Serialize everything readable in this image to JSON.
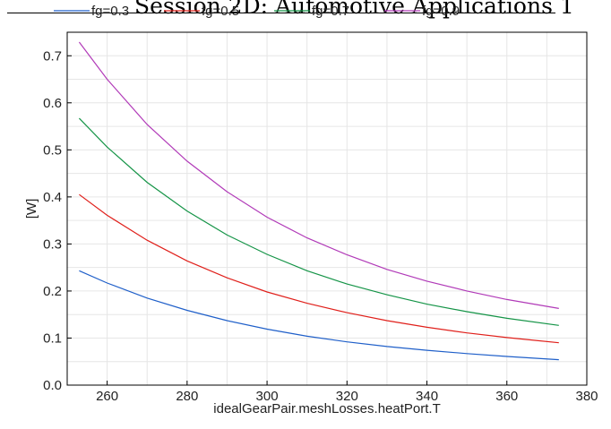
{
  "header": {
    "title": "Session 2D: Automotive Applications 1"
  },
  "chart_data": {
    "type": "line",
    "xlabel": "idealGearPair.meshLosses.heatPort.T",
    "ylabel": "[W]",
    "xlim": [
      250,
      380
    ],
    "ylim": [
      0,
      0.75
    ],
    "x_ticks": [
      260,
      280,
      300,
      320,
      340,
      360,
      380
    ],
    "y_ticks": [
      0.0,
      0.1,
      0.2,
      0.3,
      0.4,
      0.5,
      0.6,
      0.7
    ],
    "x_tick_labels": [
      "260",
      "280",
      "300",
      "320",
      "340",
      "360",
      "380"
    ],
    "y_tick_labels": [
      "0.0",
      "0.1",
      "0.2",
      "0.3",
      "0.4",
      "0.5",
      "0.6",
      "0.7"
    ],
    "grid": true,
    "legend_position": "top",
    "x": [
      253,
      260,
      270,
      280,
      290,
      300,
      310,
      320,
      330,
      340,
      350,
      360,
      373
    ],
    "series": [
      {
        "name": "fg=0.3",
        "color": "#1f5fc9",
        "values": [
          0.243,
          0.217,
          0.185,
          0.159,
          0.137,
          0.119,
          0.104,
          0.092,
          0.082,
          0.074,
          0.067,
          0.061,
          0.054
        ]
      },
      {
        "name": "fg=0.5",
        "color": "#e0201b",
        "values": [
          0.405,
          0.361,
          0.308,
          0.264,
          0.228,
          0.198,
          0.174,
          0.154,
          0.137,
          0.123,
          0.111,
          0.101,
          0.09
        ]
      },
      {
        "name": "fg=0.7",
        "color": "#159447",
        "values": [
          0.567,
          0.506,
          0.431,
          0.37,
          0.319,
          0.278,
          0.243,
          0.215,
          0.192,
          0.172,
          0.156,
          0.142,
          0.127
        ]
      },
      {
        "name": "fg=0.9",
        "color": "#b13ab8",
        "values": [
          0.729,
          0.65,
          0.554,
          0.476,
          0.411,
          0.357,
          0.313,
          0.277,
          0.246,
          0.221,
          0.2,
          0.182,
          0.163
        ]
      }
    ]
  }
}
